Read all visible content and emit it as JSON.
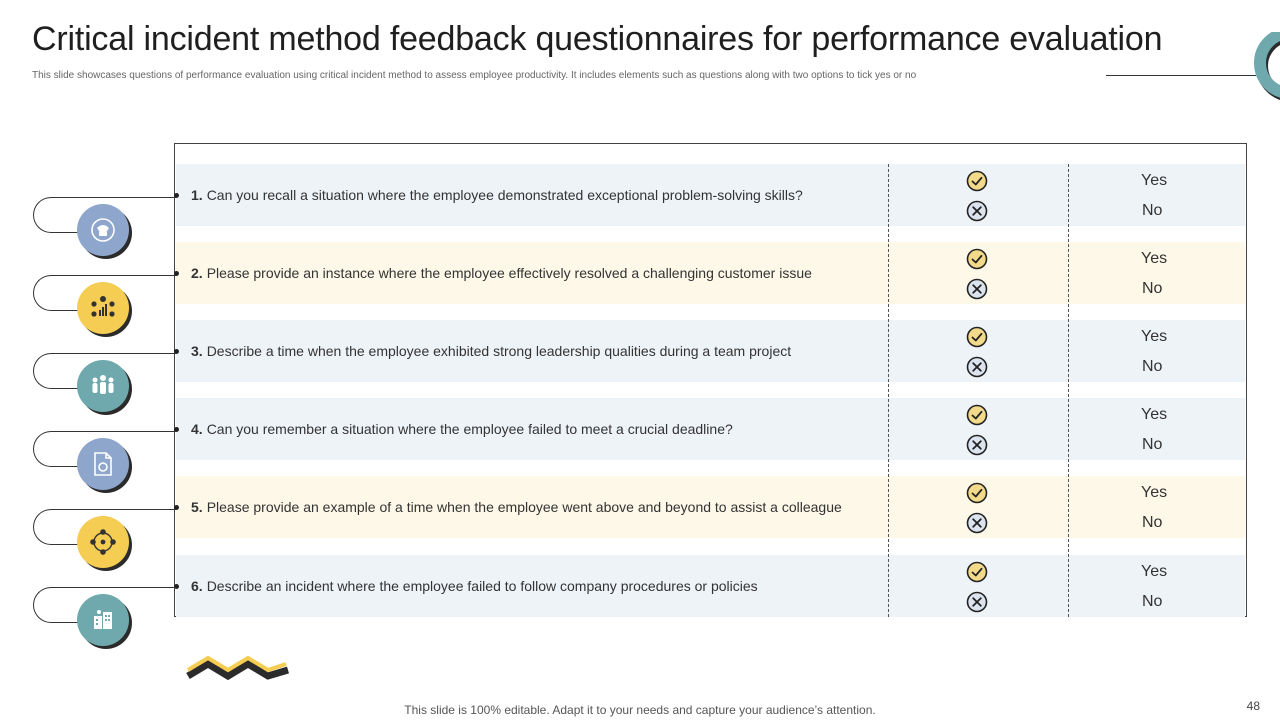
{
  "slide": {
    "title": "Critical incident method feedback questionnaires for performance evaluation",
    "subtitle": "This slide showcases questions of performance evaluation using critical incident method to assess employee productivity. It includes elements such as questions along with two options to tick yes or no",
    "footer": "This slide is 100% editable. Adapt it to your needs and capture your audience’s attention.",
    "page_number": "48"
  },
  "options": {
    "yes": "Yes",
    "no": "No"
  },
  "questions": [
    {
      "number": "1.",
      "text": "Can you recall a situation where the employee demonstrated exceptional problem-solving skills?",
      "icon": "phone-call-icon",
      "color": "#8ea6cc"
    },
    {
      "number": "2.",
      "text": "Please provide an instance where the employee effectively resolved a challenging customer issue",
      "icon": "team-growth-chart-icon",
      "color": "#f4cd52"
    },
    {
      "number": "3.",
      "text": "Describe a time when the employee exhibited strong leadership qualities during a team project",
      "icon": "team-people-icon",
      "color": "#6fa9ad"
    },
    {
      "number": "4.",
      "text": "Can you remember a situation where the employee failed to meet a crucial deadline?",
      "icon": "document-icon",
      "color": "#8ea6cc"
    },
    {
      "number": "5.",
      "text": "Please provide an example of a time when the employee went above and beyond to assist a colleague",
      "icon": "network-people-icon",
      "color": "#f4cd52"
    },
    {
      "number": "6.",
      "text": "Describe an incident where the employee failed to follow company procedures or policies",
      "icon": "office-building-icon",
      "color": "#6fa9ad"
    }
  ]
}
